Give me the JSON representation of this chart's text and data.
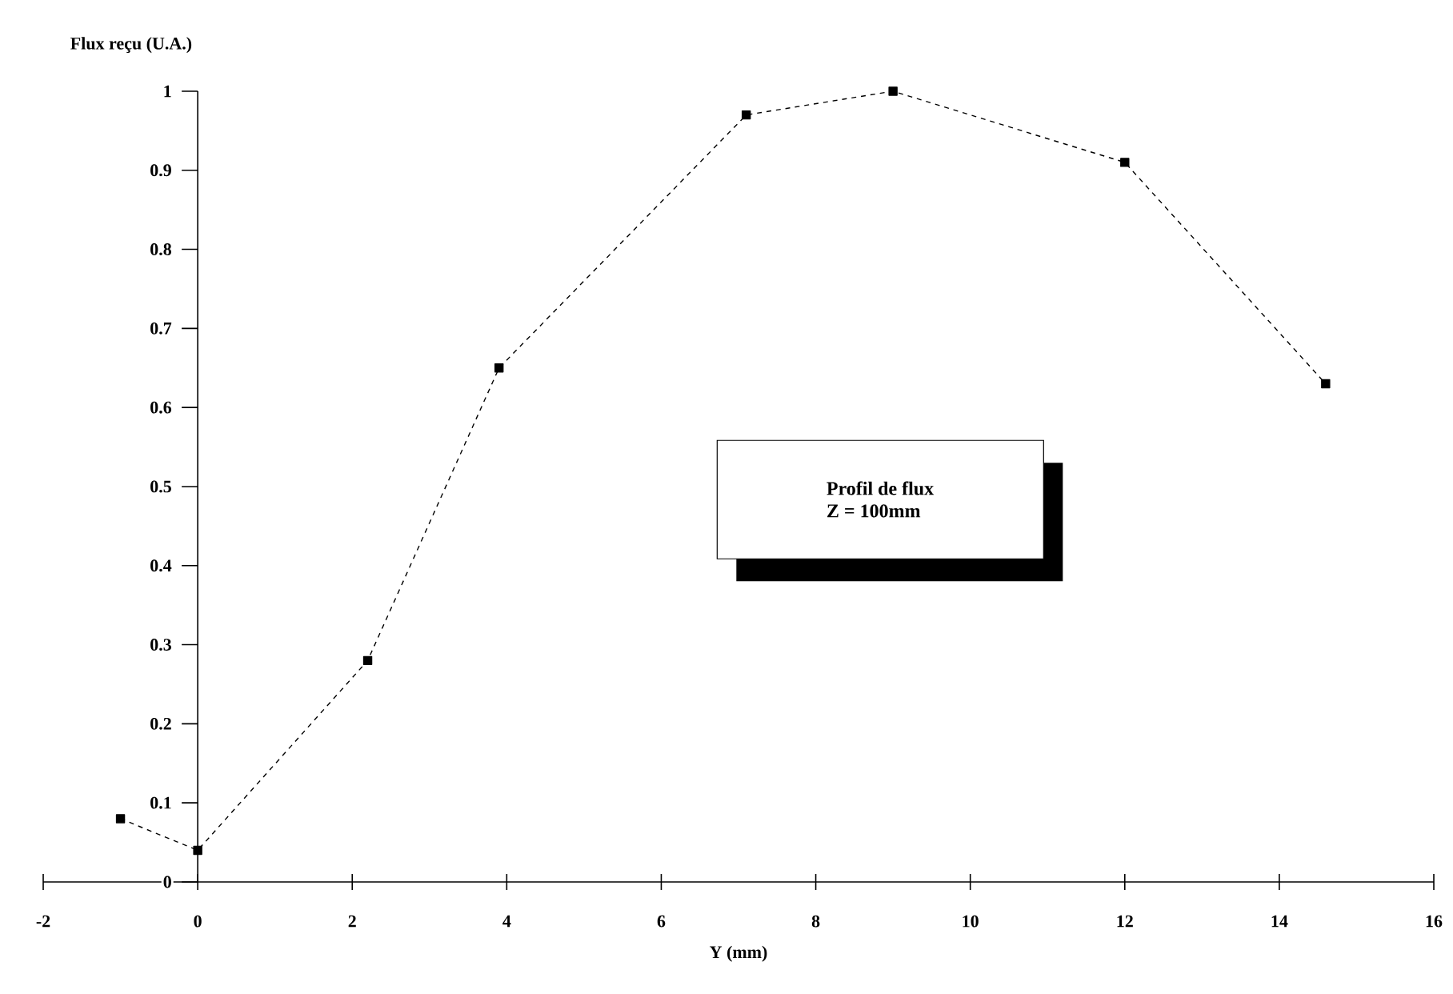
{
  "chart_data": {
    "type": "line",
    "xlabel": "Y (mm)",
    "ylabel": "Flux reçu (U.A.)",
    "x": [
      -1,
      0,
      2.2,
      3.9,
      7.1,
      9.0,
      12.0,
      14.6
    ],
    "values": [
      0.08,
      0.04,
      0.28,
      0.65,
      0.97,
      1.0,
      0.91,
      0.63
    ],
    "color": "#000000",
    "marker": "square",
    "line_style": "dashed",
    "xlim": [
      -2,
      16
    ],
    "ylim": [
      0,
      1
    ],
    "xticks": [
      -2,
      0,
      2,
      4,
      6,
      8,
      10,
      12,
      14,
      16
    ],
    "yticks": [
      0,
      0.1,
      0.2,
      0.3,
      0.4,
      0.5,
      0.6,
      0.7,
      0.8,
      0.9,
      1
    ],
    "annotations": [
      "Profil de flux",
      "Z = 100mm"
    ],
    "grid": false
  }
}
